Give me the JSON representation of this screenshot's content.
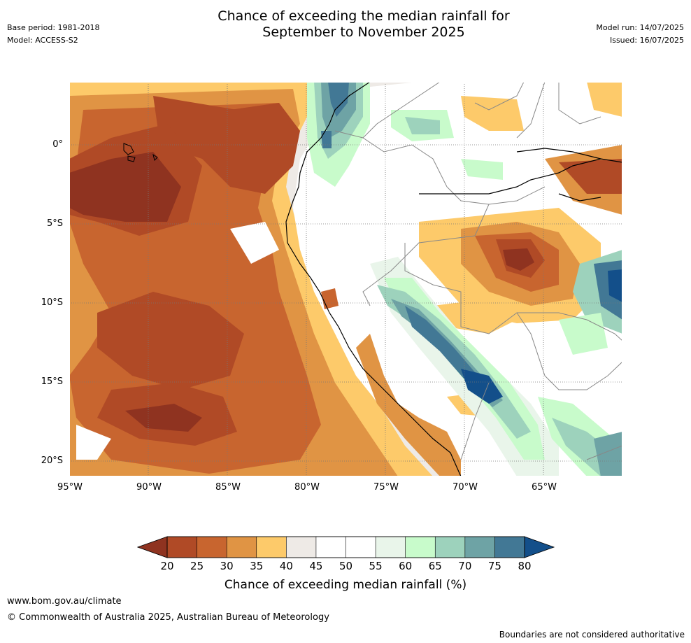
{
  "header": {
    "base_period": "Base period: 1981-2018",
    "model": "Model: ACCESS-S2",
    "title_line1": "Chance of exceeding the median rainfall for",
    "title_line2": "September to November 2025",
    "model_run": "Model run: 14/07/2025",
    "issued": "Issued: 16/07/2025"
  },
  "map": {
    "y_ticks": [
      "0°",
      "5°S",
      "10°S",
      "15°S",
      "20°S"
    ],
    "x_ticks": [
      "95°W",
      "90°W",
      "85°W",
      "80°W",
      "75°W",
      "70°W",
      "65°W"
    ],
    "x_range_deg": [
      -95,
      -60
    ],
    "y_range_deg": [
      3.8,
      -21.2
    ]
  },
  "colorbar": {
    "label": "Chance of exceeding median rainfall (%)",
    "ticks": [
      "20",
      "25",
      "30",
      "35",
      "40",
      "45",
      "50",
      "55",
      "60",
      "65",
      "70",
      "75",
      "80"
    ],
    "colors": [
      "#8f3320",
      "#b04a26",
      "#c8652f",
      "#e09444",
      "#fdca6a",
      "#eeeae6",
      "#ffffff",
      "#ffffff",
      "#e9f5ea",
      "#c8fbcb",
      "#9dd2bc",
      "#6ea3a5",
      "#427895",
      "#134f8a"
    ]
  },
  "footer": {
    "url": "www.bom.gov.au/climate",
    "copyright": "© Commonwealth of Australia 2025, Australian Bureau of Meteorology",
    "disclaimer": "Boundaries are not considered authoritative"
  }
}
